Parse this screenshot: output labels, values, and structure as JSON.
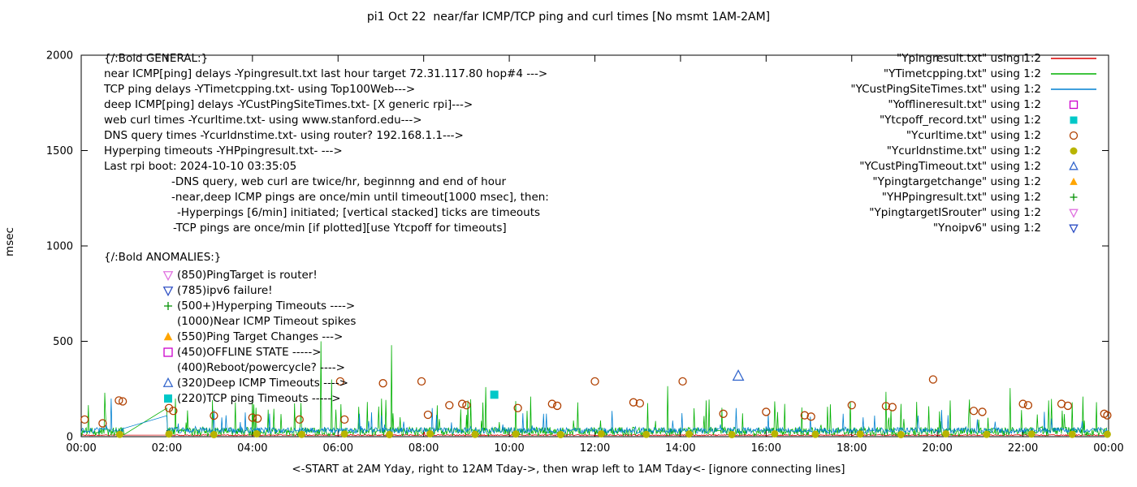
{
  "title": "pi1 Oct 22  near/far ICMP/TCP ping and curl times [No msmt 1AM-2AM]",
  "y_axis_label": "msec",
  "x_caption": "<-START at 2AM Yday, right to 12AM Tday->, then wrap left to 1AM Tday<- [ignore connecting lines]",
  "legend": [
    {
      "label": "\"Ypingresult.txt\" using 1:2",
      "style": "line",
      "color": "#dc0000"
    },
    {
      "label": "\"YTimetcpping.txt\" using 1:2",
      "style": "line",
      "color": "#00b000"
    },
    {
      "label": "\"YCustPingSiteTimes.txt\" using 1:2",
      "style": "line",
      "color": "#0080d0"
    },
    {
      "label": "\"Yofflineresult.txt\" using 1:2",
      "style": "square-open",
      "color": "#cc00cc"
    },
    {
      "label": "\"Ytcpoff_record.txt\" using 1:2",
      "style": "square-filled",
      "color": "#00c8c8"
    },
    {
      "label": "\"Ycurltime.txt\" using 1:2",
      "style": "circle-open",
      "color": "#b04000"
    },
    {
      "label": "\"Ycurldnstime.txt\" using 1:2",
      "style": "circle-filled",
      "color": "#b8b400"
    },
    {
      "label": "\"YCustPingTimeout.txt\" using 1:2",
      "style": "triangle-open",
      "color": "#3366cc"
    },
    {
      "label": "\"Ypingtargetchange\" using 1:2",
      "style": "triangle-filled",
      "color": "#ffa500"
    },
    {
      "label": "\"YHPpingresult.txt\" using 1:2",
      "style": "plus",
      "color": "#009000"
    },
    {
      "label": "\"YpingtargetISrouter\" using 1:2",
      "style": "nabla-open",
      "color": "#df70df"
    },
    {
      "label": "\"Ynoipv6\" using 1:2",
      "style": "nabla-open",
      "color": "#2e4fc4"
    }
  ],
  "general_block": {
    "lines": [
      {
        "text": "{/:Bold GENERAL:}",
        "indent": 0
      },
      {
        "text": "near ICMP[ping] delays -Ypingresult.txt last hour target 72.31.117.80 hop#4 --->",
        "indent": 0
      },
      {
        "text": "TCP ping delays -YTimetcpping.txt- using Top100Web--->",
        "indent": 0
      },
      {
        "text": "deep ICMP[ping] delays -YCustPingSiteTimes.txt- [X generic rpi]--->",
        "indent": 0
      },
      {
        "text": "web curl times -Ycurltime.txt- using www.stanford.edu--->",
        "indent": 0
      },
      {
        "text": "DNS query times -Ycurldnstime.txt- using router? 192.168.1.1--->",
        "indent": 0
      },
      {
        "text": "Hyperping timeouts -YHPpingresult.txt- --->",
        "indent": 0
      },
      {
        "text": "Last rpi boot: 2024-10-10 03:35:05",
        "indent": 0
      },
      {
        "text": "-DNS query, web curl are twice/hr, beginnng and end of hour",
        "indent": 83
      },
      {
        "text": "-near,deep ICMP pings are once/min until timeout[1000 msec], then:",
        "indent": 83
      },
      {
        "text": "-Hyperpings [6/min] initiated; [vertical stacked] ticks are timeouts",
        "indent": 90
      },
      {
        "text": "-TCP pings are once/min [if plotted][use Ytcpoff for timeouts]",
        "indent": 85
      }
    ]
  },
  "anomalies_block": {
    "header": "{/:Bold ANOMALIES:}",
    "items": [
      {
        "marker": "nabla-open",
        "color": "#df70df",
        "text": "(850)PingTarget is router!"
      },
      {
        "marker": "nabla-open",
        "color": "#2e4fc4",
        "text": "(785)ipv6 failure!"
      },
      {
        "marker": "plus",
        "color": "#009000",
        "text": "(500+)Hyperping Timeouts ---->"
      },
      {
        "marker": null,
        "color": null,
        "text": "(1000)Near ICMP Timeout spikes"
      },
      {
        "marker": "triangle-filled",
        "color": "#ffa500",
        "text": "(550)Ping Target Changes --->"
      },
      {
        "marker": "square-open",
        "color": "#cc00cc",
        "text": "(450)OFFLINE STATE ----->"
      },
      {
        "marker": null,
        "color": null,
        "text": "(400)Reboot/powercycle? ---->"
      },
      {
        "marker": "triangle-open",
        "color": "#3366cc",
        "text": "(320)Deep ICMP Timeouts ---->"
      },
      {
        "marker": "square-filled",
        "color": "#00c8c8",
        "text": "(220)TCP ping Timeouts ----->"
      }
    ]
  },
  "chart_data": {
    "type": "line",
    "title": "pi1 Oct 22  near/far ICMP/TCP ping and curl times [No msmt 1AM-2AM]",
    "xlabel": "<-START at 2AM Yday, right to 12AM Tday->, then wrap left to 1AM Tday<- [ignore connecting lines]",
    "ylabel": "msec",
    "noise_seed": 20,
    "axes": {
      "ymin": 0,
      "ymax": 2000,
      "y_ticks": [
        0,
        500,
        1000,
        1500,
        2000
      ],
      "x_ticks": [
        "00:00",
        "02:00",
        "04:00",
        "06:00",
        "08:00",
        "10:00",
        "12:00",
        "14:00",
        "16:00",
        "18:00",
        "20:00",
        "22:00",
        "00:00"
      ],
      "x_hours": 24,
      "gap_hours": [
        1,
        2
      ],
      "grid": false,
      "legend_position": "top-right"
    },
    "line_series": [
      {
        "name": "Ypingresult",
        "color": "#dc0000",
        "base": 5,
        "jitter": 6,
        "burst_chance": 0.003,
        "burst_base": 15,
        "burst_extra": 20,
        "spikes": []
      },
      {
        "name": "YTimetcpping",
        "color": "#00b000",
        "base": 5,
        "jitter": 45,
        "burst_chance": 0.05,
        "burst_base": 50,
        "burst_extra": 150,
        "spikes": [
          [
            0.55,
            230
          ],
          [
            2.0,
            150
          ],
          [
            2.2,
            200
          ],
          [
            3.6,
            180
          ],
          [
            5.6,
            500
          ],
          [
            5.85,
            300
          ],
          [
            7.25,
            480
          ],
          [
            9.45,
            260
          ],
          [
            10.5,
            210
          ],
          [
            11.6,
            180
          ],
          [
            13.7,
            265
          ],
          [
            14.6,
            190
          ],
          [
            16.2,
            185
          ],
          [
            17.5,
            170
          ],
          [
            18.8,
            235
          ],
          [
            20.3,
            190
          ],
          [
            21.7,
            255
          ],
          [
            22.6,
            190
          ],
          [
            23.4,
            210
          ]
        ]
      },
      {
        "name": "YCustPingSiteTimes",
        "color": "#0080d0",
        "base": 18,
        "jitter": 30,
        "burst_chance": 0.03,
        "burst_base": 50,
        "burst_extra": 80,
        "spikes": [
          [
            0.7,
            200
          ],
          [
            2.0,
            110
          ],
          [
            3.1,
            140
          ],
          [
            6.5,
            120
          ],
          [
            8.2,
            150
          ],
          [
            10.8,
            120
          ],
          [
            12.4,
            135
          ],
          [
            15.3,
            150
          ],
          [
            17.8,
            120
          ],
          [
            20.1,
            140
          ],
          [
            22.5,
            130
          ]
        ]
      }
    ],
    "scatter_series": [
      {
        "name": "Ycurltime",
        "style": "circle-open",
        "color": "#b04000",
        "size": 4.5,
        "points": [
          [
            0.08,
            90
          ],
          [
            0.5,
            70
          ],
          [
            0.88,
            190
          ],
          [
            0.97,
            185
          ],
          [
            2.05,
            150
          ],
          [
            2.15,
            135
          ],
          [
            3.1,
            110
          ],
          [
            4.0,
            100
          ],
          [
            4.12,
            95
          ],
          [
            5.1,
            90
          ],
          [
            6.05,
            290
          ],
          [
            6.15,
            90
          ],
          [
            7.05,
            280
          ],
          [
            7.95,
            290
          ],
          [
            8.1,
            115
          ],
          [
            8.6,
            165
          ],
          [
            8.9,
            172
          ],
          [
            9.0,
            165
          ],
          [
            10.2,
            150
          ],
          [
            11.0,
            172
          ],
          [
            11.12,
            162
          ],
          [
            12.0,
            290
          ],
          [
            12.9,
            180
          ],
          [
            13.05,
            175
          ],
          [
            14.05,
            290
          ],
          [
            15.0,
            120
          ],
          [
            16.0,
            130
          ],
          [
            16.9,
            112
          ],
          [
            17.05,
            105
          ],
          [
            18.0,
            165
          ],
          [
            18.8,
            160
          ],
          [
            18.95,
            155
          ],
          [
            19.9,
            300
          ],
          [
            20.85,
            135
          ],
          [
            21.05,
            130
          ],
          [
            22.0,
            172
          ],
          [
            22.12,
            165
          ],
          [
            22.9,
            172
          ],
          [
            23.05,
            162
          ],
          [
            23.9,
            120
          ],
          [
            23.97,
            112
          ]
        ]
      },
      {
        "name": "Ycurldnstime",
        "style": "circle-filled",
        "color": "#b8b400",
        "size": 4.5,
        "points": [
          [
            0.9,
            12
          ],
          [
            2.05,
            14
          ],
          [
            3.1,
            11
          ],
          [
            4.1,
            15
          ],
          [
            5.15,
            12
          ],
          [
            6.15,
            14
          ],
          [
            7.2,
            11
          ],
          [
            8.15,
            15
          ],
          [
            9.2,
            12
          ],
          [
            10.15,
            14
          ],
          [
            11.2,
            11
          ],
          [
            12.15,
            15
          ],
          [
            13.2,
            12
          ],
          [
            14.2,
            14
          ],
          [
            15.2,
            11
          ],
          [
            16.2,
            15
          ],
          [
            17.15,
            12
          ],
          [
            18.2,
            14
          ],
          [
            19.15,
            11
          ],
          [
            20.2,
            15
          ],
          [
            21.15,
            12
          ],
          [
            22.2,
            14
          ],
          [
            23.15,
            12
          ],
          [
            23.97,
            13
          ]
        ]
      },
      {
        "name": "Ytcpoff_record",
        "style": "square-filled",
        "color": "#00c8c8",
        "size": 5,
        "points": [
          [
            9.65,
            220
          ]
        ]
      },
      {
        "name": "YCustPingTimeout",
        "style": "triangle-open",
        "color": "#3366cc",
        "size": 6,
        "points": [
          [
            15.35,
            318
          ]
        ]
      }
    ]
  }
}
